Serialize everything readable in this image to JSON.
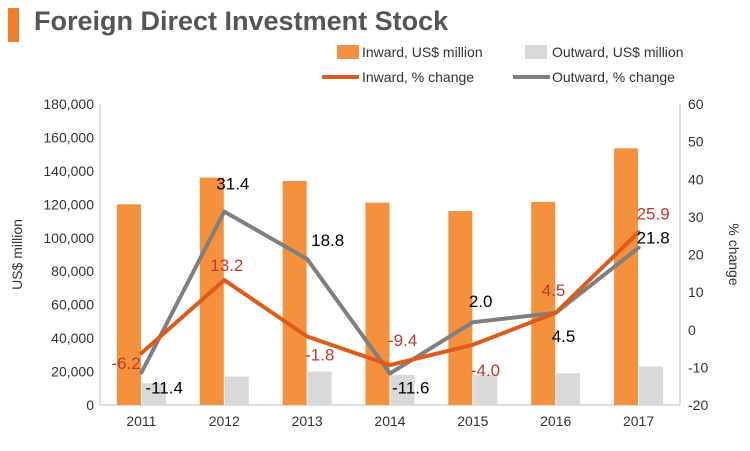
{
  "header": {
    "title": "Foreign Direct Investment Stock"
  },
  "colors": {
    "accent": "#f07f27",
    "inward_bar": "#f5913d",
    "outward_bar": "#d9d9d9",
    "inward_line": "#e05a1a",
    "outward_line": "#7f7f7f",
    "inward_label": "#c0392b",
    "outward_label": "#000000",
    "axis": "#555555",
    "tick_text": "#333333"
  },
  "chart_data": {
    "type": "bar",
    "title": "Foreign Direct Investment Stock",
    "categories": [
      "2011",
      "2012",
      "2013",
      "2014",
      "2015",
      "2016",
      "2017"
    ],
    "series": [
      {
        "name": "Inward, US$ million",
        "kind": "bar",
        "axis": "left",
        "values": [
          120000,
          136000,
          134000,
          121000,
          116000,
          121500,
          153500
        ]
      },
      {
        "name": "Outward, US$ million",
        "kind": "bar",
        "axis": "left",
        "values": [
          13000,
          17000,
          20000,
          18000,
          18000,
          19000,
          23000
        ]
      },
      {
        "name": "Inward, % change",
        "kind": "line",
        "axis": "right",
        "values": [
          -6.2,
          13.2,
          -1.8,
          -9.4,
          -4.0,
          4.5,
          25.9
        ],
        "labels": [
          "-6.2",
          "13.2",
          "-1.8",
          "-9.4",
          "-4.0",
          "4.5",
          "25.9"
        ]
      },
      {
        "name": "Outward, % change",
        "kind": "line",
        "axis": "right",
        "values": [
          -11.4,
          31.4,
          18.8,
          -11.6,
          2.0,
          4.5,
          21.8
        ],
        "labels": [
          "-11.4",
          "31.4",
          "18.8",
          "-11.6",
          "2.0",
          "4.5",
          "21.8"
        ]
      }
    ],
    "ylabel": "US$ million",
    "y2label": "% change",
    "ylim": [
      0,
      180000
    ],
    "y2lim": [
      -20,
      60
    ],
    "yticks": [
      "0",
      "20,000",
      "40,000",
      "60,000",
      "80,000",
      "100,000",
      "120,000",
      "140,000",
      "160,000",
      "180,000"
    ],
    "y2ticks": [
      "-20",
      "-10",
      "0",
      "10",
      "20",
      "30",
      "40",
      "50",
      "60"
    ],
    "legend": [
      "Inward, US$ million",
      "Outward, US$ million",
      "Inward, % change",
      "Outward, % change"
    ],
    "legend_position": "top-right",
    "grid": false
  }
}
